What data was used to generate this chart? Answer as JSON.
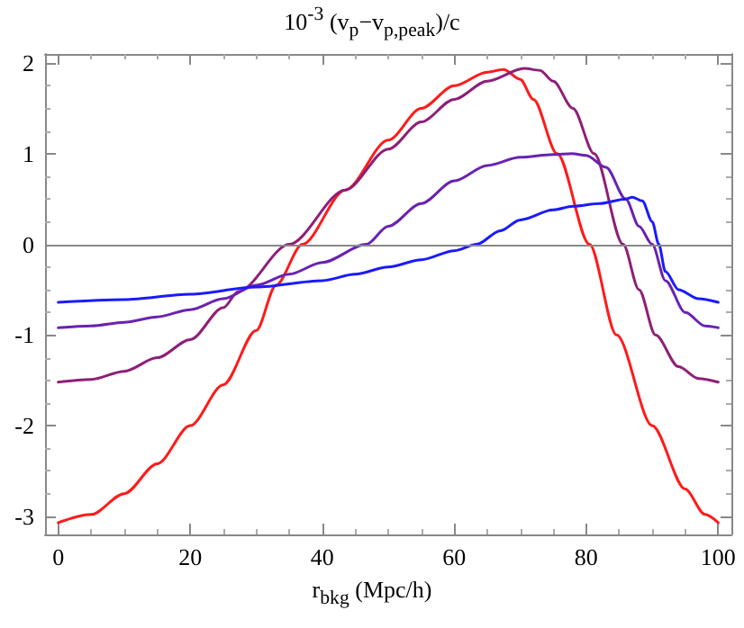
{
  "chart_data": {
    "type": "line",
    "title": "10$^{-3}$ (v$_{p}$−v$_{p,peak}$)/c",
    "xlabel": "r$_{bkg}$ (Mpc/h)",
    "xlim": [
      -2,
      102
    ],
    "ylim": [
      -3.2,
      2.1
    ],
    "xticks": [
      0,
      20,
      40,
      60,
      80,
      100
    ],
    "yticks": [
      -3,
      -2,
      -1,
      0,
      1,
      2
    ],
    "grid": false,
    "marker": "none",
    "line_style": "solid",
    "ref_lines": [
      {
        "axis": "y",
        "value": 0,
        "color": "#888888"
      }
    ],
    "series": [
      {
        "color": "#ff1a1a",
        "x": [
          0,
          5,
          10,
          15,
          20,
          25,
          30,
          33,
          37,
          43.5,
          50,
          55,
          60,
          65,
          67.5,
          70,
          72,
          75.6,
          80.5,
          84.6,
          90,
          95,
          98,
          100
        ],
        "values": [
          -3.07,
          -2.98,
          -2.75,
          -2.42,
          -2.0,
          -1.55,
          -0.95,
          -0.45,
          0.0,
          0.6,
          1.15,
          1.5,
          1.75,
          1.9,
          1.93,
          1.82,
          1.6,
          1.0,
          0.0,
          -1.0,
          -2.0,
          -2.7,
          -2.98,
          -3.07
        ]
      },
      {
        "color": "#8e1f78",
        "x": [
          0,
          5,
          10,
          15,
          20,
          25,
          27.3,
          35,
          43.5,
          50,
          55,
          60,
          65,
          70.6,
          73,
          75,
          78,
          81.2,
          85.6,
          88,
          90.5,
          94,
          97,
          100
        ],
        "values": [
          -1.52,
          -1.49,
          -1.4,
          -1.25,
          -1.05,
          -0.7,
          -0.52,
          0.0,
          0.6,
          1.05,
          1.35,
          1.6,
          1.8,
          1.94,
          1.92,
          1.8,
          1.5,
          1.0,
          0.0,
          -0.5,
          -1.0,
          -1.35,
          -1.48,
          -1.52
        ]
      },
      {
        "color": "#6a22b0",
        "x": [
          0,
          5,
          10,
          15,
          20,
          25,
          30,
          35,
          40,
          46.7,
          50,
          55,
          60,
          65,
          70,
          75,
          77.8,
          80,
          83,
          86,
          88,
          90,
          92,
          95,
          98,
          100
        ],
        "values": [
          -0.92,
          -0.9,
          -0.86,
          -0.8,
          -0.72,
          -0.6,
          -0.45,
          -0.33,
          -0.2,
          0.0,
          0.2,
          0.45,
          0.7,
          0.87,
          0.96,
          0.99,
          1.0,
          0.98,
          0.85,
          0.5,
          0.2,
          0.0,
          -0.4,
          -0.75,
          -0.9,
          -0.92
        ]
      },
      {
        "color": "#1a1aff",
        "x": [
          0,
          10,
          20,
          30,
          40,
          45,
          50,
          55,
          60,
          63.4,
          67,
          70,
          75,
          78,
          82,
          86,
          87,
          88.5,
          90,
          91,
          92,
          94,
          97,
          100
        ],
        "values": [
          -0.64,
          -0.61,
          -0.55,
          -0.47,
          -0.4,
          -0.33,
          -0.25,
          -0.17,
          -0.07,
          0.0,
          0.15,
          0.27,
          0.38,
          0.42,
          0.45,
          0.5,
          0.52,
          0.48,
          0.25,
          0.0,
          -0.3,
          -0.5,
          -0.6,
          -0.64
        ]
      }
    ]
  }
}
